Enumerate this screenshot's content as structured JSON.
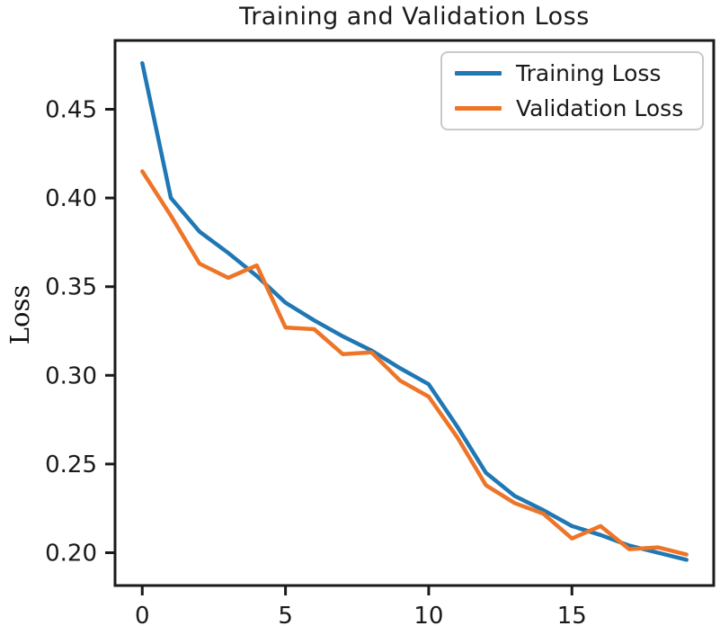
{
  "figure": {
    "title": "Training and Validation Loss",
    "background_color": "#ffffff",
    "text_color": "#1a1a1a"
  },
  "chart_data": {
    "type": "line",
    "title": "Training and Validation Loss",
    "xlabel": "",
    "ylabel": "Loss",
    "x": [
      0,
      1,
      2,
      3,
      4,
      5,
      6,
      7,
      8,
      9,
      10,
      11,
      12,
      13,
      14,
      15,
      16,
      17,
      18,
      19
    ],
    "series": [
      {
        "name": "Training Loss",
        "color": "#1f77b4",
        "values": [
          0.476,
          0.4,
          0.381,
          0.369,
          0.356,
          0.341,
          0.331,
          0.322,
          0.314,
          0.304,
          0.295,
          0.271,
          0.245,
          0.232,
          0.224,
          0.215,
          0.21,
          0.204,
          0.2,
          0.196
        ]
      },
      {
        "name": "Validation Loss",
        "color": "#ee7528",
        "values": [
          0.415,
          0.39,
          0.363,
          0.355,
          0.362,
          0.327,
          0.326,
          0.312,
          0.313,
          0.297,
          0.288,
          0.265,
          0.238,
          0.228,
          0.222,
          0.208,
          0.215,
          0.202,
          0.203,
          0.199
        ]
      }
    ],
    "xticks": [
      0,
      5,
      10,
      15
    ],
    "yticks": [
      0.2,
      0.25,
      0.3,
      0.35,
      0.4,
      0.45
    ],
    "xlim": [
      -0.95,
      19.95
    ],
    "ylim": [
      0.1815,
      0.4888
    ],
    "grid": false,
    "legend_position": "upper right",
    "frame_color": "#1a1a1a",
    "line_width": 4.5
  }
}
